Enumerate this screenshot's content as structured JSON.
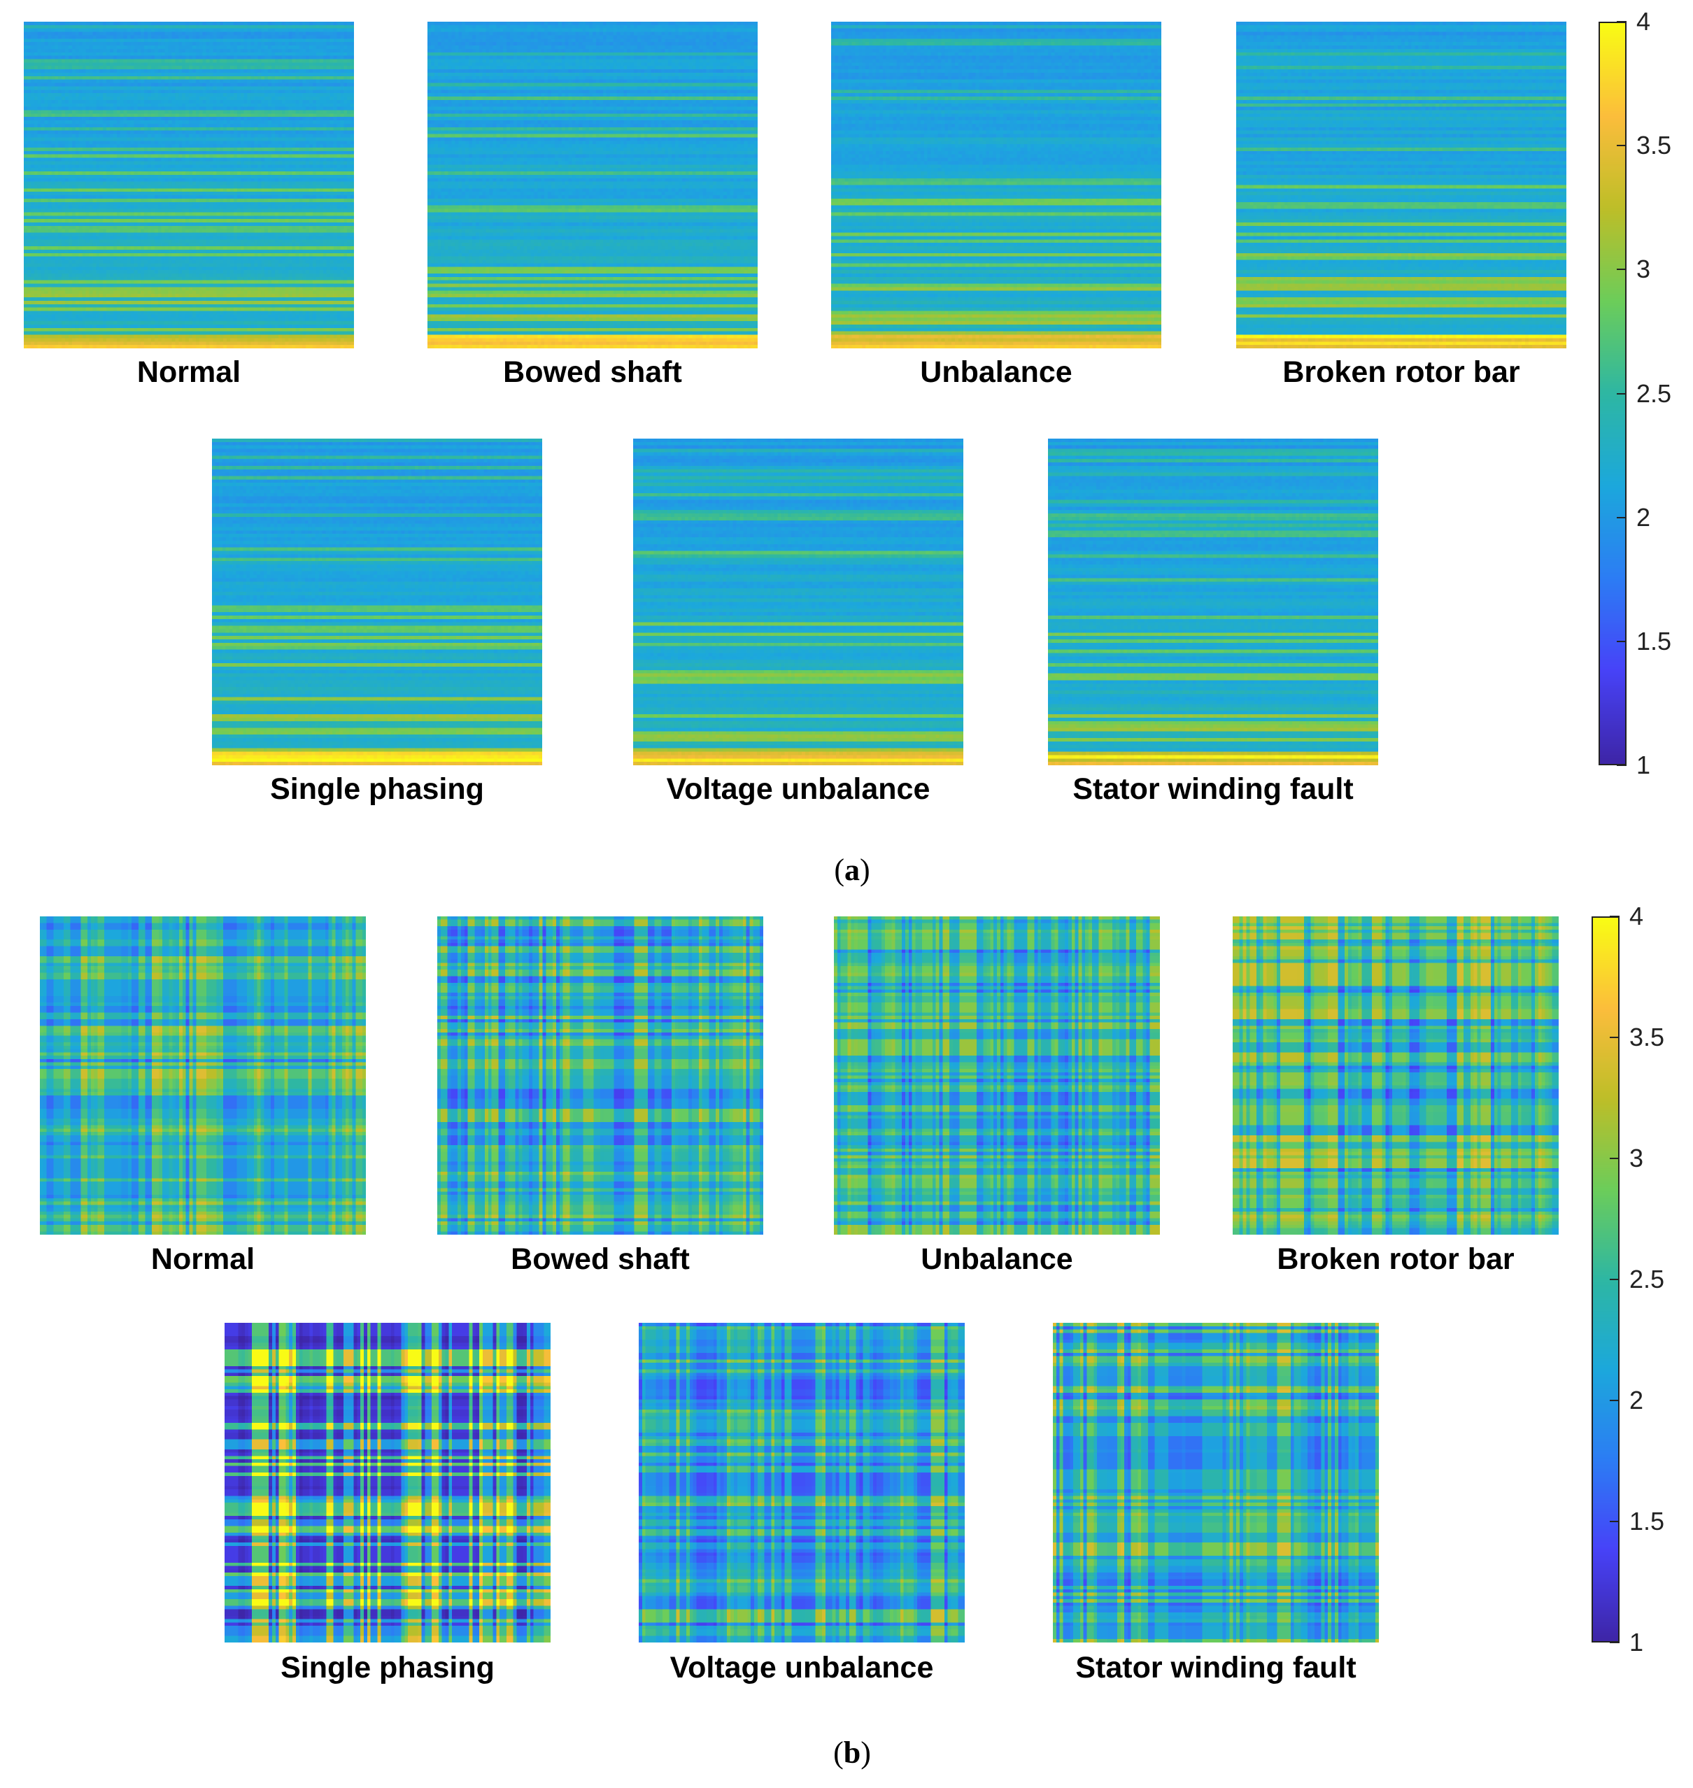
{
  "chart_data": [
    {
      "panel": "a",
      "type": "heatmap",
      "caption_letter": "a",
      "colorbar": {
        "min": 1,
        "max": 4,
        "ticks": [
          "1",
          "1.5",
          "2",
          "2.5",
          "3",
          "3.5",
          "4"
        ]
      },
      "colormap": [
        "#3e26a8",
        "#4743f8",
        "#2c7df4",
        "#1ca8dc",
        "#2eb7a3",
        "#6ccd5a",
        "#bdbe28",
        "#fbbd3c",
        "#f9fb15"
      ],
      "pattern": "horizontal-bands",
      "maps": [
        {
          "label": "Normal",
          "seed": 11
        },
        {
          "label": "Bowed shaft",
          "seed": 23
        },
        {
          "label": "Unbalance",
          "seed": 37
        },
        {
          "label": "Broken rotor bar",
          "seed": 41
        },
        {
          "label": "Single phasing",
          "seed": 53
        },
        {
          "label": "Voltage unbalance",
          "seed": 67
        },
        {
          "label": "Stator winding fault",
          "seed": 79
        }
      ]
    },
    {
      "panel": "b",
      "type": "heatmap",
      "caption_letter": "b",
      "colorbar": {
        "min": 1,
        "max": 4,
        "ticks": [
          "1",
          "1.5",
          "2",
          "2.5",
          "3",
          "3.5",
          "4"
        ]
      },
      "colormap": [
        "#3e26a8",
        "#4743f8",
        "#2c7df4",
        "#1ca8dc",
        "#2eb7a3",
        "#6ccd5a",
        "#bdbe28",
        "#fbbd3c",
        "#f9fb15"
      ],
      "pattern": "plaid",
      "maps": [
        {
          "label": "Normal",
          "seed": 101
        },
        {
          "label": "Bowed shaft",
          "seed": 113
        },
        {
          "label": "Unbalance",
          "seed": 127
        },
        {
          "label": "Broken rotor bar",
          "seed": 139
        },
        {
          "label": "Single phasing",
          "seed": 151,
          "style": "low"
        },
        {
          "label": "Voltage unbalance",
          "seed": 163
        },
        {
          "label": "Stator winding fault",
          "seed": 173
        }
      ]
    }
  ]
}
